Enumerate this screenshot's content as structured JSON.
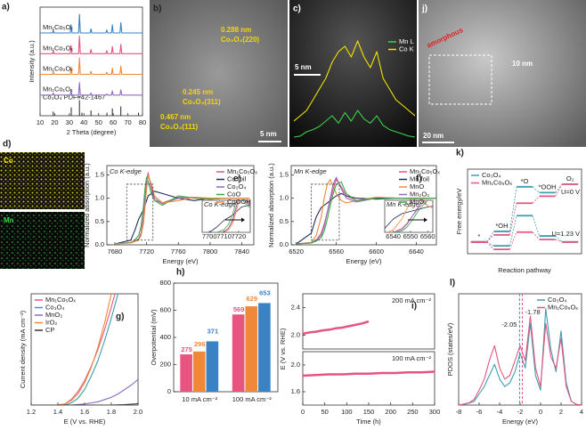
{
  "images": [
    {
      "panel": "b)",
      "labels": [
        "0.288 nm",
        "Co₃O₄(220)",
        "0.245 nm",
        "Co₃O₄(311)",
        "0.467 nm",
        "Co₃O₄(111)"
      ],
      "scale": "5 nm"
    },
    {
      "panel": "c)",
      "scale": "5 nm"
    },
    {
      "panel": "j)",
      "labels": [
        "amorphous"
      ],
      "scale": "10 nm",
      "scale2": "20 nm"
    },
    {
      "panel": "d)",
      "maps": [
        "Co",
        "Mn"
      ]
    }
  ],
  "chart_data": [
    {
      "type": "line",
      "panel": "a)",
      "xlabel": "2 Theta (degree)",
      "ylabel": "Intensity (a.u.)",
      "legend": "inline",
      "xlim": [
        10,
        80
      ],
      "ylim": [
        0,
        10.5
      ],
      "xticks": [
        10,
        20,
        30,
        40,
        50,
        60,
        70,
        80
      ],
      "x": [
        10,
        18.5,
        19,
        19.5,
        30.6,
        31.2,
        31.8,
        36.3,
        36.9,
        37.5,
        44.2,
        44.8,
        45.4,
        55,
        55.6,
        56.2,
        58.8,
        59.4,
        60,
        64.6,
        65.2,
        65.8,
        80
      ],
      "series": [
        {
          "name": "Mn₁Co₅Oₓ",
          "color": "#3b82c4",
          "values": [
            8,
            8,
            8.3,
            8,
            8,
            8.8,
            8,
            8,
            9.8,
            8,
            8,
            8.4,
            8,
            8,
            8.3,
            8,
            8,
            8.8,
            8,
            8,
            9,
            8,
            8
          ]
        },
        {
          "name": "Mn₁Co₃Oₓ",
          "color": "#e75480",
          "values": [
            6,
            6,
            6.3,
            6,
            6,
            6.8,
            6,
            6,
            7.7,
            6,
            6,
            6.4,
            6,
            6,
            6.3,
            6,
            6,
            6.7,
            6,
            6,
            6.9,
            6,
            6
          ]
        },
        {
          "name": "Mn₁Co₂Oₓ",
          "color": "#f0883a",
          "values": [
            4,
            4,
            4.3,
            4,
            4,
            4.7,
            4,
            4,
            5.6,
            4,
            4,
            4.3,
            4,
            4,
            4.2,
            4,
            4,
            4.6,
            4,
            4,
            4.8,
            4,
            4
          ]
        },
        {
          "name": "Mn₁Co₁Oₓ",
          "color": "#8e6bbf",
          "values": [
            2,
            2,
            2.2,
            2,
            2,
            2.5,
            2,
            2,
            3.2,
            2,
            2,
            2.2,
            2,
            2,
            2.1,
            2,
            2,
            2.4,
            2,
            2,
            2.5,
            2,
            2
          ]
        }
      ],
      "reference": {
        "name": "Co₃O₄ PDF#42-1467",
        "color": "#222222",
        "x": [
          19,
          31.3,
          36.9,
          38.6,
          44.8,
          55.7,
          59.4,
          65.2,
          77.3
        ],
        "values": [
          0.4,
          0.8,
          1.5,
          0.3,
          0.5,
          0.3,
          0.7,
          0.9,
          0.3
        ]
      }
    },
    {
      "type": "line",
      "legend": "top-right",
      "xlim": [
        0,
        19
      ],
      "ylim": [
        0,
        10
      ],
      "x": [
        0,
        1,
        2,
        3,
        4,
        5,
        6,
        7,
        8,
        9,
        10,
        11,
        12,
        13,
        14,
        15,
        16,
        17,
        18,
        19
      ],
      "series": [
        {
          "name": "Mn L",
          "color": "#3ad14a",
          "values": [
            0.5,
            0.6,
            1,
            1.2,
            1.5,
            2,
            2.5,
            1.8,
            2.8,
            2,
            3,
            2.2,
            1.8,
            2.5,
            1.6,
            1.2,
            1,
            0.8,
            0.6,
            0.5
          ]
        },
        {
          "name": "Co K",
          "color": "#f2e200",
          "values": [
            2,
            2.5,
            3,
            4,
            5,
            6,
            7.5,
            8.5,
            9,
            8,
            9.5,
            8,
            7,
            8.5,
            6,
            5,
            4,
            3.5,
            3,
            2.5
          ]
        }
      ]
    },
    {
      "type": "line",
      "panel": "e)",
      "title": "Co K-edge",
      "xlabel": "Energy (eV)",
      "ylabel": "Normalized absorption (a.u.)",
      "legend": "top-right",
      "xlim": [
        7670,
        7855
      ],
      "ylim": [
        0,
        1.7
      ],
      "xticks": [
        7680,
        7720,
        7760,
        7800,
        7840
      ],
      "yticks": [
        {
          "value": 0,
          "label": "0.0"
        },
        0.5,
        {
          "value": 1,
          "label": "1.0"
        },
        1.5
      ],
      "x": [
        7680,
        7700,
        7705,
        7710,
        7713,
        7716,
        7718,
        7720,
        7722,
        7726,
        7730,
        7740,
        7760,
        7780,
        7800,
        7820,
        7850
      ],
      "series": [
        {
          "name": "Mn₁Co₅Oₓ",
          "color": "#e75480",
          "values": [
            0.02,
            0.05,
            0.08,
            0.12,
            0.25,
            0.6,
            1.0,
            1.4,
            1.55,
            1.2,
            0.95,
            0.9,
            1.02,
            1.0,
            0.98,
            1.0,
            1.0
          ]
        },
        {
          "name": "Co foil",
          "color": "#222a5c",
          "values": [
            0.02,
            0.1,
            0.3,
            0.55,
            0.65,
            0.75,
            0.85,
            0.95,
            1.05,
            1.1,
            1.15,
            1.1,
            1.0,
            0.95,
            1.0,
            1.0,
            1.0
          ]
        },
        {
          "name": "Co₃O₄",
          "color": "#8e6bbf",
          "values": [
            0.02,
            0.05,
            0.08,
            0.13,
            0.25,
            0.55,
            0.95,
            1.35,
            1.5,
            1.25,
            1.0,
            0.88,
            1.0,
            1.02,
            0.98,
            1.0,
            1.0
          ]
        },
        {
          "name": "CoO",
          "color": "#3aa845",
          "values": [
            0.02,
            0.05,
            0.1,
            0.2,
            0.4,
            0.8,
            1.2,
            1.45,
            1.35,
            1.1,
            0.95,
            0.85,
            1.05,
            1.0,
            0.98,
            1.0,
            1.0
          ]
        },
        {
          "name": "CoOOH",
          "color": "#f0883a",
          "values": [
            0.02,
            0.04,
            0.07,
            0.1,
            0.2,
            0.45,
            0.8,
            1.2,
            1.5,
            1.3,
            1.05,
            0.9,
            0.95,
            1.02,
            1.0,
            1.0,
            1.0
          ]
        }
      ],
      "inset": {
        "title": "Co K-edge",
        "xlim": [
          7695,
          7728
        ],
        "ylim": [
          0.1,
          1.3
        ],
        "xticks": [
          7700,
          7710,
          7720
        ]
      }
    },
    {
      "type": "line",
      "panel": "f)",
      "title": "Mn K-edge",
      "xlabel": "Energy (eV)",
      "ylabel": "Normalized absorption (a.u.)",
      "legend": "top-right",
      "xlim": [
        6515,
        6660
      ],
      "ylim": [
        0,
        1.7
      ],
      "xticks": [
        6520,
        6560,
        6600,
        6640
      ],
      "yticks": [
        {
          "value": 0,
          "label": "0.0"
        },
        0.5,
        {
          "value": 1,
          "label": "1.0"
        },
        1.5
      ],
      "x": [
        6520,
        6535,
        6540,
        6545,
        6548,
        6551,
        6554,
        6557,
        6560,
        6565,
        6570,
        6580,
        6600,
        6620,
        6640,
        6660
      ],
      "series": [
        {
          "name": "Mn₁Co₅Oₓ",
          "color": "#e75480",
          "values": [
            0.02,
            0.05,
            0.1,
            0.25,
            0.45,
            0.7,
            0.95,
            1.2,
            1.4,
            1.25,
            1.05,
            0.95,
            1.02,
            1.0,
            0.99,
            1.0
          ]
        },
        {
          "name": "Mn foil",
          "color": "#222a5c",
          "values": [
            0.02,
            0.25,
            0.6,
            0.8,
            0.85,
            0.9,
            0.95,
            1.0,
            1.05,
            1.1,
            1.05,
            1.0,
            0.98,
            1.0,
            1.0,
            1.0
          ]
        },
        {
          "name": "MnO",
          "color": "#f0883a",
          "values": [
            0.02,
            0.05,
            0.2,
            0.6,
            1.0,
            1.3,
            1.4,
            1.25,
            1.1,
            0.95,
            0.9,
            0.95,
            1.02,
            1.0,
            1.0,
            1.0
          ]
        },
        {
          "name": "Mn₂O₃",
          "color": "#8e6bbf",
          "values": [
            0.02,
            0.04,
            0.1,
            0.2,
            0.4,
            0.7,
            1.0,
            1.3,
            1.45,
            1.2,
            1.0,
            0.92,
            1.0,
            1.0,
            1.0,
            1.0
          ]
        },
        {
          "name": "MnO₂",
          "color": "#3aa845",
          "values": [
            0.02,
            0.04,
            0.08,
            0.15,
            0.3,
            0.55,
            0.85,
            1.1,
            1.3,
            1.35,
            1.1,
            0.95,
            1.0,
            1.0,
            1.0,
            1.0
          ]
        }
      ],
      "inset": {
        "title": "Mn K-edge",
        "xlim": [
          6535,
          6563
        ],
        "ylim": [
          0.1,
          1.3
        ],
        "xticks": [
          6540,
          6550,
          6560
        ]
      }
    },
    {
      "type": "step",
      "panel": "k)",
      "xlabel": "Reaction pathway",
      "ylabel": "Free energy/eV",
      "legend": "top-left",
      "ylim": [
        -1,
        6.2
      ],
      "categories": [
        "*",
        "*OH",
        "*O",
        "*OOH",
        "O₂"
      ],
      "conditions": [
        "U=0 V",
        "U=1.23 V"
      ],
      "series": [
        {
          "name": "Co₃O₄",
          "color": "#3a9fb0",
          "values": [
            0,
            0.9,
            4.7,
            4.2,
            4.92
          ],
          "values2": [
            0,
            -0.33,
            2.24,
            0.51,
            0
          ]
        },
        {
          "name": "Mn₁Co₅Oₓ",
          "color": "#e75480",
          "values": [
            0,
            0.6,
            3.3,
            3.9,
            4.92
          ],
          "values2": [
            0,
            -0.63,
            0.84,
            0.21,
            0
          ]
        }
      ]
    },
    {
      "type": "line",
      "panel": "g)",
      "xlabel": "E (V vs. RHE)",
      "ylabel": "Current density (mA cm⁻²)",
      "legend": "top-left",
      "xlim": [
        1.2,
        2.0
      ],
      "ylim": [
        0,
        100
      ],
      "xticks": [
        1.2,
        1.4,
        1.6,
        1.8,
        {
          "value": 2,
          "label": "2.0"
        }
      ],
      "x": [
        1.2,
        1.3,
        1.4,
        1.45,
        1.5,
        1.55,
        1.6,
        1.65,
        1.7,
        1.75,
        1.8,
        1.85,
        1.9,
        1.95,
        2.0
      ],
      "series": [
        {
          "name": "Mn₁Co₅Oₓ",
          "color": "#e75480",
          "values": [
            0,
            0,
            0,
            1,
            5,
            12,
            22,
            35,
            50,
            68,
            88,
            110,
            null,
            null,
            null
          ]
        },
        {
          "name": "Co₃O₄",
          "color": "#3a9fb0",
          "values": [
            0,
            0,
            0,
            0,
            2,
            6,
            14,
            26,
            40,
            58,
            78,
            100,
            120,
            null,
            null
          ]
        },
        {
          "name": "MnO₂",
          "color": "#8e6bbf",
          "values": [
            0,
            0,
            0,
            0,
            0,
            0.5,
            1,
            2,
            3,
            5,
            7,
            10,
            14,
            18,
            23
          ]
        },
        {
          "name": "IrO₂",
          "color": "#f0883a",
          "values": [
            0,
            0,
            0,
            1,
            4,
            10,
            20,
            34,
            52,
            74,
            100,
            125,
            null,
            null,
            null
          ]
        },
        {
          "name": "CP",
          "color": "#333333",
          "values": [
            0,
            0,
            0,
            0,
            0,
            0,
            0,
            0,
            0,
            0,
            0,
            0.2,
            0.4,
            0.8,
            1.2
          ]
        }
      ]
    },
    {
      "type": "bar",
      "panel": "h)",
      "ylabel": "Overpotential (mV)",
      "ylim": [
        0,
        800
      ],
      "yticks": [
        0,
        200,
        400,
        600,
        800
      ],
      "categories": [
        "10 mA cm⁻²",
        "100 mA cm⁻²"
      ],
      "series": [
        {
          "color": "#e75480",
          "values": [
            275,
            569
          ]
        },
        {
          "color": "#f0883a",
          "values": [
            296,
            629
          ]
        },
        {
          "color": "#3b82c4",
          "values": [
            371,
            653
          ]
        }
      ]
    },
    {
      "type": "line",
      "panel": "i)",
      "annotation": "200 mA cm⁻²",
      "xlim": [
        0,
        300
      ],
      "ylim": [
        1.8,
        2.6
      ],
      "yticks": [
        {
          "value": 2,
          "label": "2.0"
        },
        2.4
      ],
      "x": [
        0,
        15,
        30,
        45,
        60,
        75,
        90,
        105,
        120,
        135,
        150
      ],
      "series": [
        {
          "color": "#e75480",
          "values": [
            2.02,
            2.04,
            2.05,
            2.07,
            2.08,
            2.1,
            2.11,
            2.13,
            2.15,
            2.17,
            2.2
          ]
        }
      ]
    },
    {
      "type": "line",
      "annotation": "100 mA cm⁻²",
      "xlabel": "Time (h)",
      "ylabel": "E (V vs. RHE)",
      "xlim": [
        0,
        300
      ],
      "ylim": [
        1.4,
        2.2
      ],
      "xticks": [
        0,
        50,
        100,
        150,
        200,
        250,
        300
      ],
      "yticks": [
        1.6,
        {
          "value": 2,
          "label": "2.0"
        }
      ],
      "x": [
        0,
        30,
        60,
        90,
        120,
        150,
        180,
        210,
        240,
        270,
        300
      ],
      "series": [
        {
          "color": "#e75480",
          "values": [
            1.84,
            1.85,
            1.86,
            1.86,
            1.87,
            1.87,
            1.88,
            1.88,
            1.89,
            1.89,
            1.9
          ]
        }
      ]
    },
    {
      "type": "line",
      "panel": "l)",
      "xlabel": "Energy (eV)",
      "ylabel": "PDOS (states/eV)",
      "legend": "top-right",
      "xlim": [
        -8,
        4
      ],
      "ylim": [
        0,
        3
      ],
      "xticks": [
        -8,
        -6,
        -4,
        -2,
        0,
        2,
        4
      ],
      "x": [
        -8,
        -7.5,
        -7,
        -6.5,
        -6,
        -5.5,
        -5,
        -4.5,
        -4,
        -3.5,
        -3,
        -2.5,
        -2,
        -1.5,
        -1,
        -0.5,
        0,
        0.5,
        1,
        1.5,
        2,
        2.5,
        3,
        3.5,
        4
      ],
      "series": [
        {
          "name": "Co₃O₄",
          "color": "#3a9fb0",
          "d_band_center": -2.05,
          "values": [
            0,
            0.02,
            0.05,
            0.1,
            0.3,
            0.5,
            0.8,
            1.1,
            0.7,
            0.5,
            0.6,
            0.9,
            1.4,
            1.0,
            2.2,
            0.8,
            0.4,
            2.6,
            1.5,
            0.9,
            2.0,
            0.6,
            0.1,
            0.02,
            0
          ]
        },
        {
          "name": "Mn₁Co₅Oₓ",
          "color": "#e75480",
          "d_band_center": -1.78,
          "values": [
            0,
            0.03,
            0.06,
            0.15,
            0.4,
            0.7,
            1.2,
            1.6,
            1.0,
            0.7,
            0.8,
            1.2,
            1.6,
            1.2,
            2.4,
            1.0,
            0.5,
            2.2,
            1.3,
            1.0,
            1.8,
            0.5,
            0.1,
            0.02,
            0
          ]
        }
      ]
    }
  ]
}
